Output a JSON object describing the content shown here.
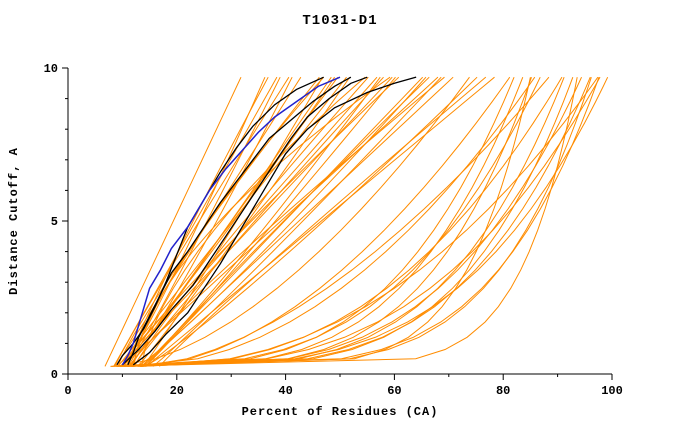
{
  "figure": {
    "background": "#ffffff"
  },
  "chart_data": {
    "type": "line",
    "title": "T1031-D1",
    "xlabel": "Percent of Residues (CA)",
    "ylabel": "Distance Cutoff, A",
    "xlim": [
      0,
      100
    ],
    "ylim": [
      0,
      10
    ],
    "xticks": [
      0,
      20,
      40,
      60,
      80,
      100
    ],
    "xminor": [
      10,
      30,
      50,
      70,
      90
    ],
    "yticks": [
      0,
      5,
      10
    ],
    "yminor": [
      1,
      2,
      3,
      4,
      6,
      7,
      8,
      9
    ],
    "grid": false,
    "legend": null,
    "colors": {
      "ensemble": "#ff8c00",
      "model": "#000000",
      "highlight": "#2222cc",
      "axis": "#000000"
    },
    "series": [
      {
        "name": "model-black-1",
        "color": "#000000",
        "width": 1.3,
        "points": [
          [
            11,
            0.3
          ],
          [
            12,
            0.7
          ],
          [
            13,
            1.2
          ],
          [
            15,
            1.9
          ],
          [
            17,
            2.6
          ],
          [
            19,
            3.3
          ],
          [
            22,
            4.0
          ],
          [
            25,
            4.8
          ],
          [
            28,
            5.6
          ],
          [
            31,
            6.3
          ],
          [
            34,
            7.0
          ],
          [
            37,
            7.7
          ],
          [
            41,
            8.3
          ],
          [
            45,
            8.9
          ],
          [
            49,
            9.4
          ],
          [
            52,
            9.7
          ]
        ]
      },
      {
        "name": "model-black-2",
        "color": "#000000",
        "width": 1.3,
        "points": [
          [
            10,
            0.3
          ],
          [
            13,
            0.8
          ],
          [
            16,
            1.4
          ],
          [
            19,
            2.1
          ],
          [
            23,
            2.9
          ],
          [
            26,
            3.7
          ],
          [
            29,
            4.5
          ],
          [
            32,
            5.3
          ],
          [
            35,
            6.1
          ],
          [
            38,
            6.9
          ],
          [
            41,
            7.7
          ],
          [
            44,
            8.4
          ],
          [
            48,
            9.0
          ],
          [
            52,
            9.5
          ],
          [
            55,
            9.7
          ]
        ]
      },
      {
        "name": "model-black-3",
        "color": "#000000",
        "width": 1.3,
        "points": [
          [
            12,
            0.3
          ],
          [
            15,
            0.7
          ],
          [
            18,
            1.3
          ],
          [
            22,
            2.0
          ],
          [
            25,
            2.8
          ],
          [
            28,
            3.6
          ],
          [
            31,
            4.5
          ],
          [
            34,
            5.4
          ],
          [
            37,
            6.3
          ],
          [
            40,
            7.2
          ],
          [
            44,
            8.0
          ],
          [
            49,
            8.7
          ],
          [
            55,
            9.2
          ],
          [
            60,
            9.5
          ],
          [
            64,
            9.7
          ]
        ]
      },
      {
        "name": "model-black-4",
        "color": "#000000",
        "width": 1.3,
        "points": [
          [
            9,
            0.3
          ],
          [
            10,
            0.6
          ],
          [
            12,
            1.0
          ],
          [
            14,
            1.5
          ],
          [
            16,
            2.2
          ],
          [
            18,
            3.0
          ],
          [
            20,
            3.9
          ],
          [
            22,
            4.8
          ],
          [
            25,
            5.7
          ],
          [
            28,
            6.6
          ],
          [
            31,
            7.4
          ],
          [
            34,
            8.1
          ],
          [
            38,
            8.8
          ],
          [
            42,
            9.3
          ],
          [
            47,
            9.7
          ]
        ]
      },
      {
        "name": "model-highlight-blue",
        "color": "#2222cc",
        "width": 1.5,
        "points": [
          [
            10,
            0.3
          ],
          [
            11,
            0.6
          ],
          [
            12,
            1.0
          ],
          [
            13,
            1.6
          ],
          [
            14,
            2.2
          ],
          [
            15,
            2.8
          ],
          [
            17,
            3.4
          ],
          [
            19,
            4.1
          ],
          [
            22,
            4.8
          ],
          [
            24,
            5.4
          ],
          [
            26,
            6.0
          ],
          [
            29,
            6.7
          ],
          [
            32,
            7.3
          ],
          [
            35,
            7.9
          ],
          [
            38,
            8.4
          ],
          [
            42,
            8.9
          ],
          [
            46,
            9.4
          ],
          [
            50,
            9.7
          ]
        ]
      }
    ],
    "ensemble": {
      "description": "background ensemble curves as [x_start, x_end, shape_exponent]; x(t)=x0+(x1-x0)*t^p with t the normalized cutoff",
      "color_key": "ensemble",
      "y_samples": [
        0.25,
        0.5,
        0.8,
        1.2,
        1.7,
        2.2,
        2.8,
        3.4,
        4.0,
        4.7,
        5.4,
        6.1,
        6.8,
        7.5,
        8.2,
        8.9,
        9.4,
        9.7
      ],
      "curves": [
        [
          8,
          33,
          1.0
        ],
        [
          9,
          35,
          0.9
        ],
        [
          10,
          36,
          1.1
        ],
        [
          8,
          38,
          1.0
        ],
        [
          11,
          39,
          0.95
        ],
        [
          9,
          41,
          1.05
        ],
        [
          12,
          42,
          0.9
        ],
        [
          10,
          44,
          1.0
        ],
        [
          8,
          45,
          1.15
        ],
        [
          13,
          46,
          0.95
        ],
        [
          11,
          48,
          1.0
        ],
        [
          9,
          49,
          0.9
        ],
        [
          12,
          50,
          1.05
        ],
        [
          10,
          52,
          1.0
        ],
        [
          14,
          53,
          0.95
        ],
        [
          11,
          54,
          1.1
        ],
        [
          9,
          56,
          1.0
        ],
        [
          13,
          57,
          0.9
        ],
        [
          12,
          58,
          1.05
        ],
        [
          10,
          60,
          1.0
        ],
        [
          15,
          61,
          0.95
        ],
        [
          11,
          62,
          1.1
        ],
        [
          13,
          64,
          1.0
        ],
        [
          12,
          65,
          0.9
        ],
        [
          14,
          66,
          1.05
        ],
        [
          10,
          68,
          1.0
        ],
        [
          16,
          69,
          0.95
        ],
        [
          12,
          70,
          1.1
        ],
        [
          15,
          72,
          1.0
        ],
        [
          13,
          74,
          0.9
        ],
        [
          16,
          76,
          1.05
        ],
        [
          14,
          78,
          1.0
        ],
        [
          12,
          47,
          1.35
        ],
        [
          14,
          55,
          1.5
        ],
        [
          13,
          60,
          1.6
        ],
        [
          10,
          75,
          0.6
        ],
        [
          12,
          80,
          0.55
        ],
        [
          11,
          85,
          0.5
        ],
        [
          13,
          88,
          0.6
        ],
        [
          9,
          82,
          0.3
        ],
        [
          10,
          84,
          0.28
        ],
        [
          11,
          86,
          0.25
        ],
        [
          9,
          88,
          0.32
        ],
        [
          12,
          90,
          0.27
        ],
        [
          10,
          92,
          0.24
        ],
        [
          13,
          94,
          0.3
        ],
        [
          11,
          96,
          0.26
        ],
        [
          12,
          98,
          0.22
        ],
        [
          10,
          100,
          0.28
        ],
        [
          14,
          99,
          0.35
        ],
        [
          9,
          95,
          0.2
        ],
        [
          11,
          90,
          0.4
        ],
        [
          13,
          97,
          0.45
        ],
        [
          8,
          85,
          0.15
        ],
        [
          10,
          94,
          0.12
        ]
      ]
    }
  }
}
